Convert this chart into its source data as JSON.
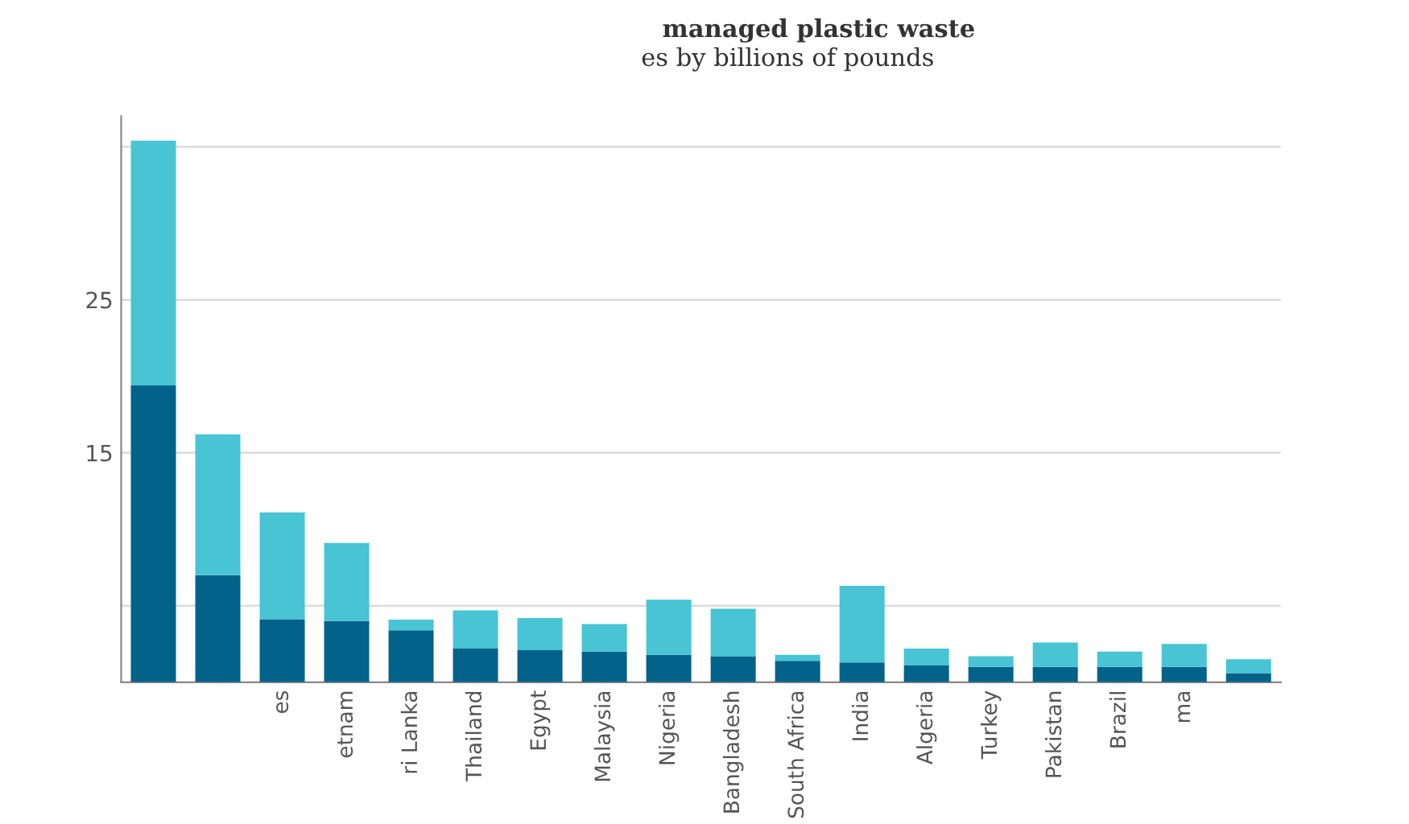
{
  "chart_data": {
    "type": "bar",
    "title": "managed plastic waste",
    "subtitle": "es by billions of pounds",
    "categories": [
      null,
      null,
      "es",
      "etnam",
      "ri Lanka",
      "Thailand",
      "Egypt",
      "Malaysia",
      "Nigeria",
      "Bangladesh",
      "South Africa",
      "India",
      "Algeria",
      "Turkey",
      "Pakistan",
      "Brazil",
      "ma",
      null
    ],
    "stacked": true,
    "series": [
      {
        "color": "#02628a",
        "values": [
          19.4,
          7.0,
          4.1,
          4.0,
          3.4,
          2.2,
          2.1,
          2.0,
          1.8,
          1.7,
          1.4,
          1.3,
          1.1,
          1.0,
          1.0,
          1.0,
          1.0,
          0.6
        ]
      },
      {
        "color": "#48c4d4",
        "values": [
          16.0,
          9.2,
          7.0,
          5.1,
          0.7,
          2.5,
          2.1,
          1.8,
          3.6,
          3.1,
          0.4,
          5.0,
          1.1,
          0.7,
          1.6,
          1.0,
          1.5,
          0.9
        ]
      }
    ],
    "ylim": [
      0,
      37
    ],
    "yticks": [
      {
        "value": 5,
        "label": null
      },
      15,
      25,
      {
        "value": 35,
        "label": null
      }
    ],
    "grid": "y",
    "legend": false
  }
}
